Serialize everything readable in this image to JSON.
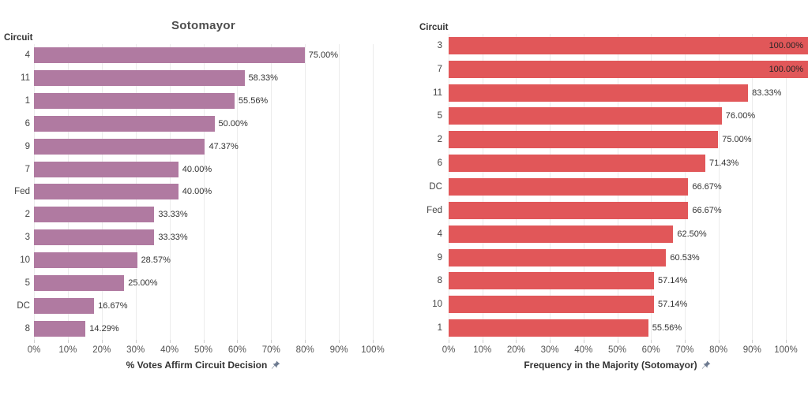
{
  "app": {
    "background_color": "#ffffff"
  },
  "chart_data": [
    {
      "type": "bar",
      "orientation": "horizontal",
      "title": "Sotomayor",
      "y_axis_header": "Circuit",
      "xlabel": "% Votes Affirm Circuit Decision",
      "axis_pin_icon": "pushpin",
      "bar_color": "#b07aa1",
      "grid": "vertical-light",
      "legend": "none",
      "xlim": [
        0,
        100
      ],
      "x_tick_labels": [
        "0%",
        "10%",
        "20%",
        "30%",
        "40%",
        "50%",
        "60%",
        "70%",
        "80%",
        "90%",
        "100%"
      ],
      "categories": [
        "4",
        "11",
        "1",
        "6",
        "9",
        "7",
        "Fed",
        "2",
        "3",
        "10",
        "5",
        "DC",
        "8"
      ],
      "values": [
        75.0,
        58.33,
        55.56,
        50.0,
        47.37,
        40.0,
        40.0,
        33.33,
        33.33,
        28.57,
        25.0,
        16.67,
        14.29
      ],
      "value_labels": [
        "75.00%",
        "58.33%",
        "55.56%",
        "50.00%",
        "47.37%",
        "40.00%",
        "40.00%",
        "33.33%",
        "33.33%",
        "28.57%",
        "25.00%",
        "16.67%",
        "14.29%"
      ]
    },
    {
      "type": "bar",
      "orientation": "horizontal",
      "title": "",
      "y_axis_header": "Circuit",
      "xlabel": "Frequency in the Majority (Sotomayor)",
      "axis_pin_icon": "pushpin",
      "bar_color": "#e15759",
      "grid": "vertical-light",
      "legend": "none",
      "xlim": [
        0,
        100
      ],
      "x_tick_labels": [
        "0%",
        "10%",
        "20%",
        "30%",
        "40%",
        "50%",
        "60%",
        "70%",
        "80%",
        "90%",
        "100%"
      ],
      "categories": [
        "3",
        "7",
        "11",
        "5",
        "2",
        "6",
        "DC",
        "Fed",
        "4",
        "9",
        "8",
        "10",
        "1"
      ],
      "values": [
        100.0,
        100.0,
        83.33,
        76.0,
        75.0,
        71.43,
        66.67,
        66.67,
        62.5,
        60.53,
        57.14,
        57.14,
        55.56
      ],
      "value_labels": [
        "100.00%",
        "100.00%",
        "83.33%",
        "76.00%",
        "75.00%",
        "71.43%",
        "66.67%",
        "66.67%",
        "62.50%",
        "60.53%",
        "57.14%",
        "57.14%",
        "55.56%"
      ]
    }
  ]
}
